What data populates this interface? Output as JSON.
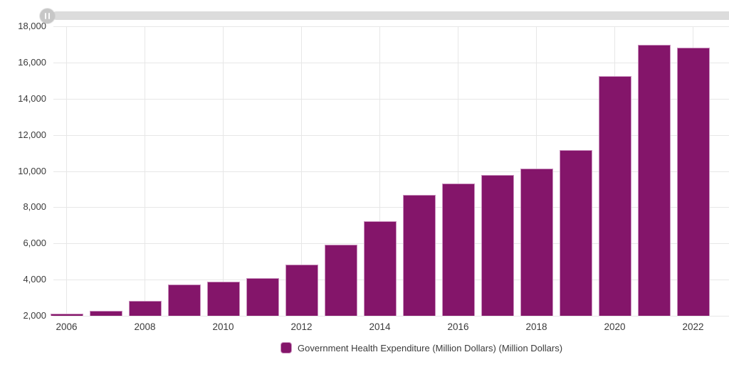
{
  "scroller": {
    "purpose": "chart-pan-scroller",
    "track_color": "#dcdcdc",
    "handle_color": "#c7c7c7",
    "handle_icon": "grip-vertical"
  },
  "chart_data": {
    "type": "bar",
    "title": "",
    "xlabel": "",
    "ylabel": "",
    "categories": [
      2006,
      2007,
      2008,
      2009,
      2010,
      2011,
      2012,
      2013,
      2014,
      2015,
      2016,
      2017,
      2018,
      2019,
      2020,
      2021,
      2022
    ],
    "values": [
      2100,
      2280,
      2830,
      3740,
      3870,
      4100,
      4830,
      5920,
      7240,
      8680,
      9330,
      9780,
      10150,
      11170,
      15240,
      16970,
      16810
    ],
    "series": [
      {
        "name": "Government Health Expenditure (Million Dollars) (Million Dollars)",
        "values": [
          2100,
          2280,
          2830,
          3740,
          3870,
          4100,
          4830,
          5920,
          7240,
          8680,
          9330,
          9780,
          10150,
          11170,
          15240,
          16970,
          16810
        ]
      }
    ],
    "ylim": [
      2000,
      18000
    ],
    "ytick_step": 2000,
    "ytick_labels": [
      "2,000",
      "4,000",
      "6,000",
      "8,000",
      "10,000",
      "12,000",
      "14,000",
      "16,000",
      "18,000"
    ],
    "x_labeled_every": 2,
    "x_tick_labels": [
      "2006",
      "2008",
      "2010",
      "2012",
      "2014",
      "2016",
      "2018",
      "2020",
      "2022"
    ],
    "grid": "on",
    "legend_position": "bottom-center",
    "bar_color": "#84156a",
    "bar_border_color": "#cb93bf",
    "grid_color": "#e7e7e7",
    "axis_text_color": "#3b3b3b"
  }
}
